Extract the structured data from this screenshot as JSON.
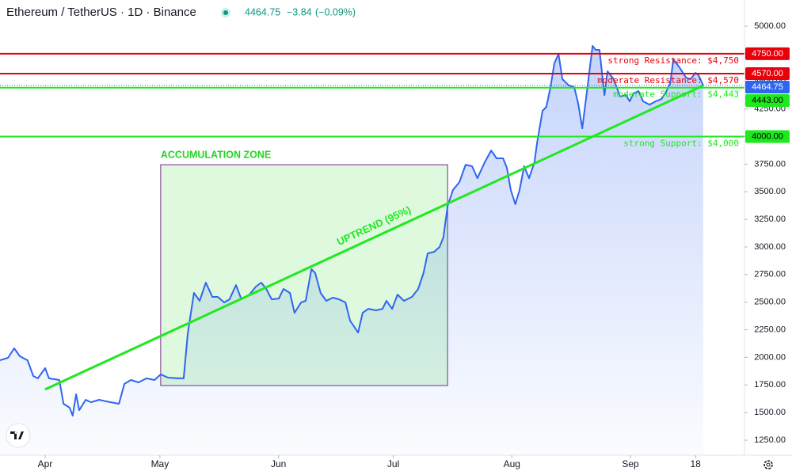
{
  "header": {
    "symbol": "Ethereum / TetherUS · 1D · Binance",
    "last": 4464.75,
    "change": "−3.84",
    "change_pct": "(−0.09%)"
  },
  "chart_data": {
    "type": "line",
    "x": [
      -11.8,
      -9.7,
      -8.1,
      -6.6,
      -4.6,
      -3.1,
      -1.9,
      0,
      1,
      3.7,
      4.8,
      6.4,
      7.2,
      8.1,
      8.9,
      10.6,
      12,
      14.1,
      16.1,
      19.3,
      20.7,
      22.4,
      24.4,
      26.5,
      28.6,
      30.2,
      32.1,
      34.8,
      36.2,
      37.3,
      38.9,
      40.4,
      42,
      43.7,
      45.1,
      46.8,
      48.2,
      49.9,
      51.3,
      53.4,
      55.1,
      56.5,
      57.8,
      59.2,
      61.1,
      62.3,
      64,
      65.2,
      66.9,
      68.1,
      69.6,
      70.6,
      72,
      73.5,
      75.2,
      76.8,
      78.5,
      79.7,
      81.8,
      83,
      84.5,
      86.5,
      88.2,
      89.2,
      90.7,
      92.1,
      93.8,
      95.9,
      97.5,
      98.9,
      100,
      101.7,
      103.1,
      104.1,
      105.2,
      106.6,
      108.3,
      109.9,
      111.6,
      113,
      114.9,
      116.6,
      118,
      119.7,
      120.7,
      121.7,
      122.9,
      124,
      125.2,
      126.5,
      127.9,
      128.6,
      130,
      131,
      132.1,
      133.1,
      134.2,
      135.2,
      136.9,
      138.3,
      139.3,
      140.4,
      141.8,
      143.1,
      143.9,
      144.9,
      146.2,
      147,
      148.6,
      150.3,
      151.8,
      152.8,
      153.8,
      155.1,
      156.3,
      158,
      159.6,
      161.1,
      162.1,
      163.4,
      164.2,
      165.8,
      167.5,
      168.7,
      170,
      170.8,
      172
    ],
    "values": [
      1974,
      1996,
      2082,
      2010,
      1974,
      1831,
      1810,
      1903,
      1810,
      1795,
      1580,
      1544,
      1472,
      1666,
      1522,
      1616,
      1594,
      1616,
      1601,
      1580,
      1759,
      1795,
      1774,
      1810,
      1795,
      1846,
      1817,
      1810,
      1810,
      2225,
      2584,
      2512,
      2677,
      2548,
      2548,
      2498,
      2526,
      2655,
      2526,
      2569,
      2641,
      2677,
      2620,
      2526,
      2533,
      2620,
      2584,
      2404,
      2498,
      2512,
      2799,
      2763,
      2584,
      2512,
      2541,
      2526,
      2498,
      2333,
      2225,
      2404,
      2440,
      2426,
      2440,
      2512,
      2440,
      2569,
      2512,
      2548,
      2620,
      2763,
      2942,
      2957,
      3000,
      3086,
      3373,
      3516,
      3588,
      3745,
      3731,
      3623,
      3767,
      3874,
      3803,
      3803,
      3717,
      3516,
      3387,
      3516,
      3731,
      3623,
      3767,
      3946,
      4233,
      4269,
      4448,
      4663,
      4749,
      4520,
      4462,
      4448,
      4304,
      4075,
      4462,
      4821,
      4785,
      4785,
      4376,
      4591,
      4520,
      4362,
      4376,
      4319,
      4391,
      4412,
      4319,
      4290,
      4319,
      4340,
      4391,
      4484,
      4699,
      4627,
      4534,
      4520,
      4577,
      4555,
      4464.75
    ],
    "color": "#2f65f0",
    "xlim": [
      -11.8,
      182.8
    ],
    "xticks": [
      {
        "value": 0,
        "label": "Apr"
      },
      {
        "value": 30,
        "label": "May"
      },
      {
        "value": 61,
        "label": "Jun"
      },
      {
        "value": 91,
        "label": "Jul"
      },
      {
        "value": 122,
        "label": "Aug"
      },
      {
        "value": 153,
        "label": "Sep"
      },
      {
        "value": 170,
        "label": "18"
      }
    ],
    "ylim": [
      1114,
      5237
    ],
    "yticks": [
      {
        "value": 1250,
        "label": "1250.00"
      },
      {
        "value": 1500,
        "label": "1500.00"
      },
      {
        "value": 1750,
        "label": "1750.00"
      },
      {
        "value": 2000,
        "label": "2000.00"
      },
      {
        "value": 2250,
        "label": "2250.00"
      },
      {
        "value": 2500,
        "label": "2500.00"
      },
      {
        "value": 2750,
        "label": "2750.00"
      },
      {
        "value": 3000,
        "label": "3000.00"
      },
      {
        "value": 3250,
        "label": "3250.00"
      },
      {
        "value": 3500,
        "label": "3500.00"
      },
      {
        "value": 3750,
        "label": "3750.00"
      },
      {
        "value": 4000,
        "label": "4000.00"
      },
      {
        "value": 4250,
        "label": "4250.00"
      },
      {
        "value": 4500,
        "label": "4500.00"
      },
      {
        "value": 4750,
        "label": "4750.00"
      },
      {
        "value": 5000,
        "label": "5000.00"
      }
    ],
    "levels": [
      {
        "name": "strong Resistance: $4,750",
        "value": 4750,
        "label": "4750.00",
        "color": "#e8000b"
      },
      {
        "name": "moderate Resistance: $4,570",
        "value": 4570,
        "label": "4570.00",
        "color": "#e8000b"
      },
      {
        "name": "moderate Support: $4,443",
        "value": 4443,
        "label": "4443.00",
        "color": "#1ee81e"
      },
      {
        "name": "strong Support: $4,000",
        "value": 4000,
        "label": "4000.00",
        "color": "#1ee81e"
      }
    ],
    "trendline": {
      "label": "UPTREND (95%)",
      "x": [
        0,
        172
      ],
      "y": [
        1710,
        4462
      ],
      "color": "#22e822"
    },
    "zone": {
      "label": "ACCUMULATION ZONE",
      "x": [
        30.2,
        105.2
      ],
      "y": [
        1745,
        3745
      ],
      "color": "#22d422"
    }
  }
}
